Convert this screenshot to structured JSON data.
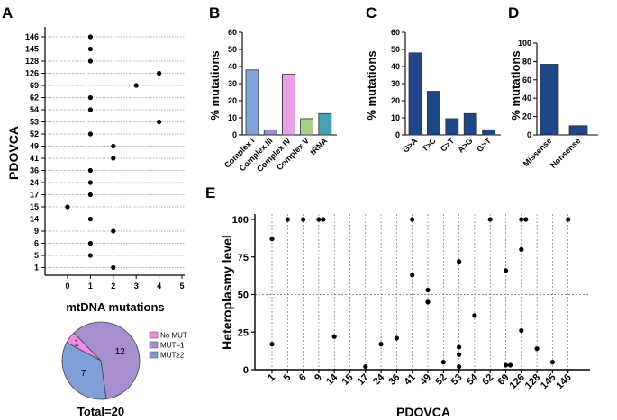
{
  "panels": {
    "A": "A",
    "B": "B",
    "C": "C",
    "D": "D",
    "E": "E"
  },
  "colors": {
    "complex_i": "#7fa3d4",
    "complex_iii": "#9b8fd0",
    "complex_iv": "#e8a0e8",
    "complex_v": "#a8d08d",
    "trna": "#4a9fb5",
    "navy": "#1f4788",
    "pie_nomut": "#f08ae8",
    "pie_mut1": "#a68fcf",
    "pie_mut2": "#7f9fd6"
  },
  "chart_data": [
    {
      "id": "A",
      "type": "scatter",
      "title": "mtDNA mutations",
      "xlabel": "mtDNA mutations",
      "ylabel": "PDOVCA",
      "xlim": [
        -1,
        5
      ],
      "xticks": [
        0,
        1,
        2,
        3,
        4,
        5
      ],
      "categories": [
        "146",
        "145",
        "128",
        "126",
        "69",
        "62",
        "54",
        "53",
        "52",
        "49",
        "41",
        "36",
        "24",
        "17",
        "15",
        "14",
        "9",
        "6",
        "5",
        "1"
      ],
      "values": [
        1,
        1,
        1,
        4,
        3,
        1,
        1,
        4,
        1,
        2,
        2,
        1,
        1,
        1,
        0,
        1,
        2,
        1,
        1,
        2
      ]
    },
    {
      "id": "B",
      "type": "bar",
      "ylabel": "% mutations",
      "ylim": [
        0,
        60
      ],
      "yticks": [
        0,
        10,
        20,
        30,
        40,
        50,
        60
      ],
      "categories": [
        "Complex I",
        "Complex III",
        "Complex IV",
        "Complex V",
        "tRNA"
      ],
      "values": [
        38,
        3,
        35.5,
        9.5,
        12.5
      ]
    },
    {
      "id": "C",
      "type": "bar",
      "ylabel": "% mutations",
      "ylim": [
        0,
        60
      ],
      "yticks": [
        0,
        10,
        20,
        30,
        40,
        50,
        60
      ],
      "categories": [
        "G>A",
        "T>C",
        "C>T",
        "A>G",
        "G>T"
      ],
      "values": [
        48,
        25.5,
        9.5,
        12.5,
        3
      ]
    },
    {
      "id": "D",
      "type": "bar",
      "ylabel": "% mutations",
      "ylim": [
        0,
        100
      ],
      "yticks": [
        0,
        20,
        40,
        60,
        80,
        100
      ],
      "categories": [
        "Missense",
        "Nonsense"
      ],
      "values": [
        77,
        10
      ]
    },
    {
      "id": "E",
      "type": "scatter",
      "xlabel": "PDOVCA",
      "ylabel": "Heteroplasmy level",
      "ylim": [
        0,
        100
      ],
      "yticks": [
        0,
        25,
        50,
        75,
        100
      ],
      "categories": [
        "1",
        "5",
        "6",
        "9",
        "14",
        "15",
        "17",
        "24",
        "36",
        "41",
        "49",
        "52",
        "53",
        "54",
        "62",
        "69",
        "126",
        "128",
        "145",
        "146"
      ],
      "reference_line": 50,
      "points": [
        {
          "x": "1",
          "y": 87
        },
        {
          "x": "1",
          "y": 17
        },
        {
          "x": "5",
          "y": 100
        },
        {
          "x": "6",
          "y": 100
        },
        {
          "x": "9",
          "y": 100
        },
        {
          "x": "9",
          "y": 100
        },
        {
          "x": "14",
          "y": 22
        },
        {
          "x": "17",
          "y": 2
        },
        {
          "x": "24",
          "y": 17
        },
        {
          "x": "36",
          "y": 21
        },
        {
          "x": "41",
          "y": 100
        },
        {
          "x": "41",
          "y": 63
        },
        {
          "x": "49",
          "y": 53
        },
        {
          "x": "49",
          "y": 45
        },
        {
          "x": "52",
          "y": 5
        },
        {
          "x": "53",
          "y": 72
        },
        {
          "x": "53",
          "y": 15
        },
        {
          "x": "53",
          "y": 10
        },
        {
          "x": "53",
          "y": 2
        },
        {
          "x": "54",
          "y": 36
        },
        {
          "x": "62",
          "y": 100
        },
        {
          "x": "69",
          "y": 66
        },
        {
          "x": "69",
          "y": 3
        },
        {
          "x": "69",
          "y": 3
        },
        {
          "x": "126",
          "y": 100
        },
        {
          "x": "126",
          "y": 100
        },
        {
          "x": "126",
          "y": 80
        },
        {
          "x": "126",
          "y": 26
        },
        {
          "x": "128",
          "y": 14
        },
        {
          "x": "145",
          "y": 5
        },
        {
          "x": "146",
          "y": 100
        }
      ]
    },
    {
      "id": "A-pie",
      "type": "pie",
      "labels": [
        "No MUT",
        "MUT=1",
        "MUT≥2"
      ],
      "values": [
        1,
        12,
        7
      ],
      "total_label": "Total=20"
    }
  ]
}
